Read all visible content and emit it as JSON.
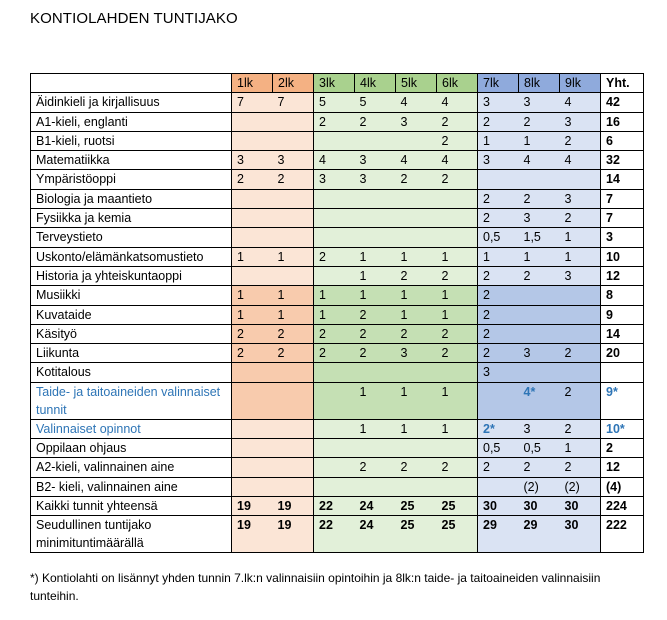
{
  "title": "KONTIOLAHDEN TUNTIJAKO",
  "colors": {
    "grade_1_2": "#f4b183",
    "grade_3_6": "#a9d18e",
    "grade_7_9": "#8faadc",
    "accent_text": "#2e75b6"
  },
  "table": {
    "headers": [
      "",
      "1lk",
      "2lk",
      "3lk",
      "4lk",
      "5lk",
      "6lk",
      "7lk",
      "8lk",
      "9lk",
      "Yht."
    ],
    "rows": [
      {
        "label": "Äidinkieli ja kirjallisuus",
        "shade": "light",
        "cells": [
          "7",
          "7",
          "5",
          "5",
          "4",
          "4",
          "3",
          "3",
          "4",
          "42"
        ]
      },
      {
        "label": "A1-kieli, englanti",
        "shade": "light",
        "cells": [
          "",
          "",
          "2",
          "2",
          "3",
          "2",
          "2",
          "2",
          "3",
          "16"
        ]
      },
      {
        "label": "B1-kieli, ruotsi",
        "shade": "light",
        "cells": [
          "",
          "",
          "",
          "",
          "",
          "2",
          "1",
          "1",
          "2",
          "6"
        ]
      },
      {
        "label": "Matematiikka",
        "shade": "light",
        "cells": [
          "3",
          "3",
          "4",
          "3",
          "4",
          "4",
          "3",
          "4",
          "4",
          "32"
        ]
      },
      {
        "label": "Ympäristöoppi",
        "shade": "light",
        "cells": [
          "2",
          "2",
          "3",
          "3",
          "2",
          "2",
          "",
          "",
          "",
          "14"
        ]
      },
      {
        "label": "Biologia ja maantieto",
        "shade": "light",
        "cells": [
          "",
          "",
          "",
          "",
          "",
          "",
          "2",
          "2",
          "3",
          "7"
        ]
      },
      {
        "label": "Fysiikka ja kemia",
        "shade": "light",
        "cells": [
          "",
          "",
          "",
          "",
          "",
          "",
          "2",
          "3",
          "2",
          "7"
        ]
      },
      {
        "label": "Terveystieto",
        "shade": "light",
        "cells": [
          "",
          "",
          "",
          "",
          "",
          "",
          "0,5",
          "1,5",
          "1",
          "3"
        ]
      },
      {
        "label": "Uskonto/elämänkatsomustieto",
        "shade": "light",
        "cells": [
          "1",
          "1",
          "2",
          "1",
          "1",
          "1",
          "1",
          "1",
          "1",
          "10"
        ]
      },
      {
        "label": "Historia ja yhteiskuntaoppi",
        "shade": "light",
        "cells": [
          "",
          "",
          "",
          "1",
          "2",
          "2",
          "2",
          "2",
          "3",
          "12"
        ]
      },
      {
        "label": "Musiikki",
        "shade": "dark",
        "cells": [
          "1",
          "1",
          "1",
          "1",
          "1",
          "1",
          "2",
          "",
          "",
          "8"
        ]
      },
      {
        "label": "Kuvataide",
        "shade": "dark",
        "cells": [
          "1",
          "1",
          "1",
          "2",
          "1",
          "1",
          "2",
          "",
          "",
          "9"
        ]
      },
      {
        "label": "Käsityö",
        "shade": "dark",
        "cells": [
          "2",
          "2",
          "2",
          "2",
          "2",
          "2",
          "2",
          "",
          "",
          "14"
        ]
      },
      {
        "label": "Liikunta",
        "shade": "dark",
        "cells": [
          "2",
          "2",
          "2",
          "2",
          "3",
          "2",
          "2",
          "3",
          "2",
          "20"
        ]
      },
      {
        "label": "Kotitalous",
        "shade": "dark",
        "cells": [
          "",
          "",
          "",
          "",
          "",
          "",
          "3",
          "",
          "",
          ""
        ]
      },
      {
        "label": "Taide- ja taitoaineiden valinnaiset tunnit",
        "shade": "dark",
        "accent_label": true,
        "tall": true,
        "cells": [
          "",
          "",
          "",
          "1",
          "1",
          "1",
          "",
          "4*",
          "2",
          "9*"
        ],
        "accent_cells": [
          7,
          9
        ]
      },
      {
        "label": "Valinnaiset opinnot",
        "shade": "light",
        "accent_label": true,
        "cells": [
          "",
          "",
          "",
          "1",
          "1",
          "1",
          "2*",
          "3",
          "2",
          "10*"
        ],
        "accent_cells": [
          6,
          9
        ]
      },
      {
        "label": "Oppilaan ohjaus",
        "shade": "light",
        "cells": [
          "",
          "",
          "",
          "",
          "",
          "",
          "0,5",
          "0,5",
          "1",
          "2"
        ]
      },
      {
        "label": "A2-kieli, valinnainen aine",
        "shade": "light",
        "cells": [
          "",
          "",
          "",
          "2",
          "2",
          "2",
          "2",
          "2",
          "2",
          "12"
        ]
      },
      {
        "label": "B2- kieli, valinnainen aine",
        "shade": "light",
        "cells": [
          "",
          "",
          "",
          "",
          "",
          "",
          "",
          "(2)",
          "(2)",
          "(4)"
        ]
      },
      {
        "label": "Kaikki tunnit yhteensä",
        "shade": "light",
        "bold": true,
        "cells": [
          "19",
          "19",
          "22",
          "24",
          "25",
          "25",
          "30",
          "30",
          "30",
          "224"
        ]
      },
      {
        "label": "Seudullinen tuntijako minimituntimäärällä",
        "shade": "light",
        "bold": true,
        "tall": true,
        "cells": [
          "19",
          "19",
          "22",
          "24",
          "25",
          "25",
          "29",
          "29",
          "30",
          "222"
        ]
      }
    ]
  },
  "footnote": "*) Kontiolahti on lisännyt yhden tunnin 7.lk:n valinnaisiin opintoihin ja 8lk:n taide- ja taitoaineiden valinnaisiin tunteihin."
}
